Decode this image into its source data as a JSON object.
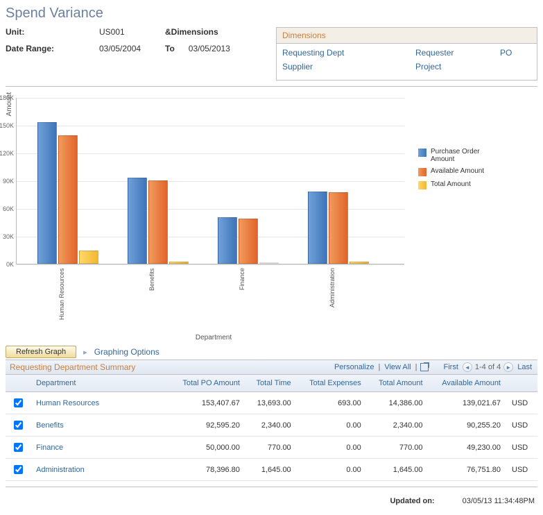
{
  "title": "Spend Variance",
  "meta": {
    "unit_label": "Unit:",
    "unit_value": "US001",
    "dimensions_link": "&Dimensions",
    "date_range_label": "Date Range:",
    "date_from": "03/05/2004",
    "to_label": "To",
    "date_to": "03/05/2013"
  },
  "dimensions_panel": {
    "header": "Dimensions",
    "row1": {
      "c1": "Requesting Dept",
      "c2": "Requester",
      "c3": "PO"
    },
    "row2": {
      "c1": "Supplier",
      "c2": "Project"
    }
  },
  "chart": {
    "y_label": "Amount",
    "x_label": "Department",
    "y_max": 180,
    "ticks": [
      "0K",
      "30K",
      "60K",
      "90K",
      "120K",
      "150K",
      "180K"
    ],
    "colors": {
      "po": {
        "c1": "#6fa1d9",
        "c2": "#3f74b8"
      },
      "avail": {
        "c1": "#f19b5d",
        "c2": "#e0642a"
      },
      "total": {
        "c1": "#ffd86b",
        "c2": "#f2b732"
      }
    },
    "categories": [
      {
        "label": "Human Resources",
        "po": 153,
        "avail": 139,
        "total": 14
      },
      {
        "label": "Benefits",
        "po": 93,
        "avail": 90,
        "total": 2
      },
      {
        "label": "Finance",
        "po": 50,
        "avail": 49,
        "total": 1
      },
      {
        "label": "Administration",
        "po": 78,
        "avail": 77,
        "total": 2
      }
    ],
    "legend": {
      "po": "Purchase Order Amount",
      "avail": "Available Amount",
      "total": "Total Amount"
    }
  },
  "controls": {
    "refresh": "Refresh Graph",
    "graphing_options": "Graphing Options"
  },
  "table": {
    "title": "Requesting Department Summary",
    "toolbar": {
      "personalize": "Personalize",
      "view_all": "View All",
      "first": "First",
      "range": "1-4 of 4",
      "last": "Last"
    },
    "headers": {
      "dept": "Department",
      "po": "Total PO Amount",
      "time": "Total Time",
      "exp": "Total Expenses",
      "amt": "Total Amount",
      "avail": "Available Amount"
    },
    "rows": [
      {
        "dept": "Human Resources",
        "po": "153,407.67",
        "time": "13,693.00",
        "exp": "693.00",
        "amt": "14,386.00",
        "avail": "139,021.67",
        "cur": "USD"
      },
      {
        "dept": "Benefits",
        "po": "92,595.20",
        "time": "2,340.00",
        "exp": "0.00",
        "amt": "2,340.00",
        "avail": "90,255.20",
        "cur": "USD"
      },
      {
        "dept": "Finance",
        "po": "50,000.00",
        "time": "770.00",
        "exp": "0.00",
        "amt": "770.00",
        "avail": "49,230.00",
        "cur": "USD"
      },
      {
        "dept": "Administration",
        "po": "78,396.80",
        "time": "1,645.00",
        "exp": "0.00",
        "amt": "1,645.00",
        "avail": "76,751.80",
        "cur": "USD"
      }
    ]
  },
  "footer": {
    "label": "Updated on:",
    "value": "03/05/13 11:34:48PM"
  }
}
